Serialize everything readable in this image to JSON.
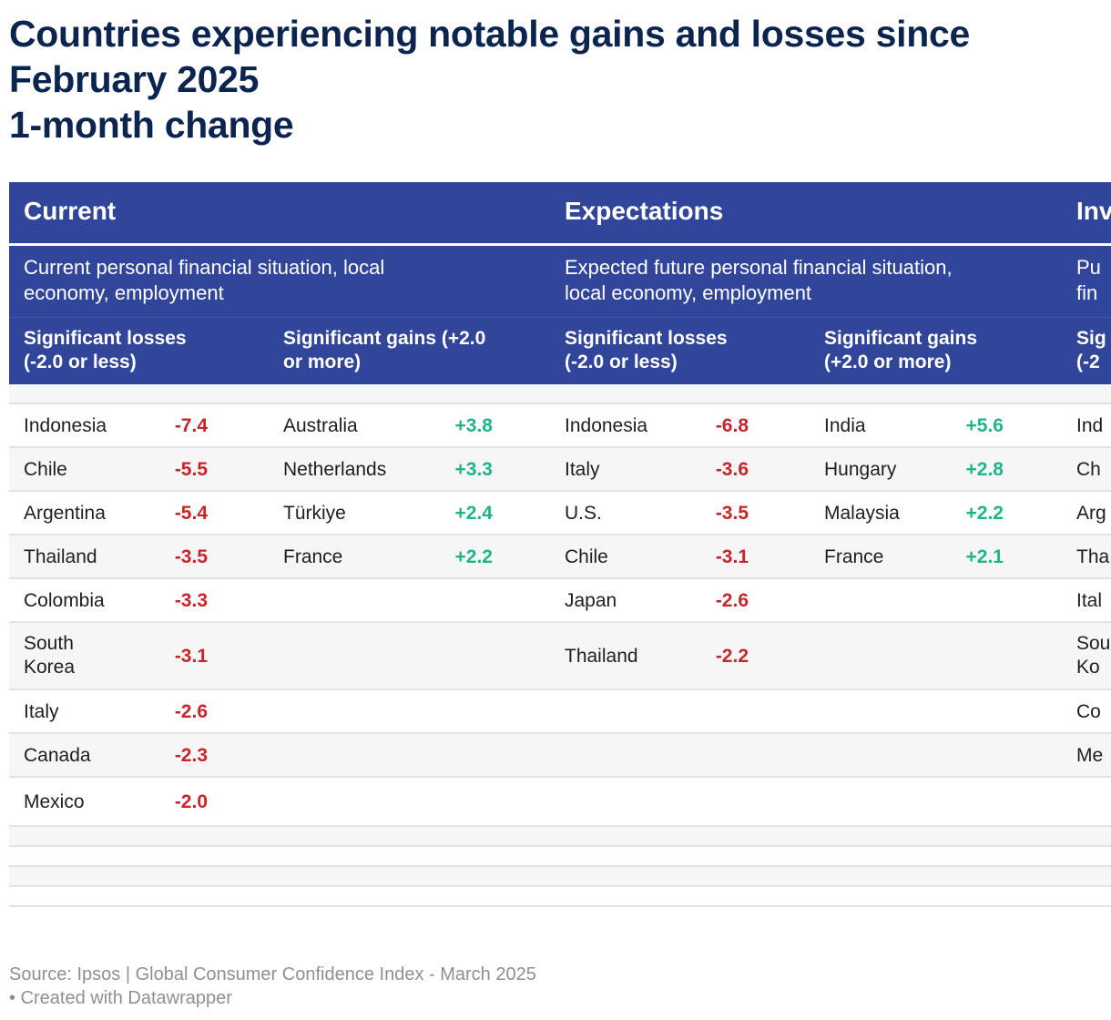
{
  "title": {
    "line1": "Countries experiencing notable gains and losses since",
    "line2": "February 2025",
    "line3": "1-month change"
  },
  "groups": [
    {
      "title": "Current",
      "description": "Current personal financial situation, local economy, employment"
    },
    {
      "title": "Expectations",
      "description": "Expected future personal financial situation, local economy, employment"
    },
    {
      "title": "Inv",
      "description": "Pu fin"
    }
  ],
  "column_headers": {
    "losses": "Significant losses (-2.0 or less)",
    "gains_current": "Significant gains (+2.0 or more)",
    "gains_expectations": "Significant gains (+2.0 or more)",
    "partial": "Sig (-2"
  },
  "current": {
    "losses": [
      {
        "country": "Indonesia",
        "value": "-7.4"
      },
      {
        "country": "Chile",
        "value": "-5.5"
      },
      {
        "country": "Argentina",
        "value": "-5.4"
      },
      {
        "country": "Thailand",
        "value": "-3.5"
      },
      {
        "country": "Colombia",
        "value": "-3.3"
      },
      {
        "country": "South Korea",
        "value": "-3.1"
      },
      {
        "country": "Italy",
        "value": "-2.6"
      },
      {
        "country": "Canada",
        "value": "-2.3"
      },
      {
        "country": "Mexico",
        "value": "-2.0"
      }
    ],
    "gains": [
      {
        "country": "Australia",
        "value": "+3.8"
      },
      {
        "country": "Netherlands",
        "value": "+3.3"
      },
      {
        "country": "Türkiye",
        "value": "+2.4"
      },
      {
        "country": "France",
        "value": "+2.2"
      }
    ]
  },
  "expectations": {
    "losses": [
      {
        "country": "Indonesia",
        "value": "-6.8"
      },
      {
        "country": "Italy",
        "value": "-3.6"
      },
      {
        "country": "U.S.",
        "value": "-3.5"
      },
      {
        "country": "Chile",
        "value": "-3.1"
      },
      {
        "country": "Japan",
        "value": "-2.6"
      },
      {
        "country": "Thailand",
        "value": "-2.2"
      }
    ],
    "gains": [
      {
        "country": "India",
        "value": "+5.6"
      },
      {
        "country": "Hungary",
        "value": "+2.8"
      },
      {
        "country": "Malaysia",
        "value": "+2.2"
      },
      {
        "country": "France",
        "value": "+2.1"
      }
    ]
  },
  "partial_column": [
    "Ind",
    "Ch",
    "Arg",
    "Tha",
    "Ital",
    "Sou Ko",
    "Co",
    "Me"
  ],
  "footer": {
    "source": "Source: Ipsos | Global Consumer Confidence Index - March 2025",
    "credit": "• Created with Datawrapper"
  },
  "colors": {
    "header_bg": "#31469b",
    "title": "#0c2450",
    "negative": "#c7252a",
    "positive": "#1eb58c"
  }
}
